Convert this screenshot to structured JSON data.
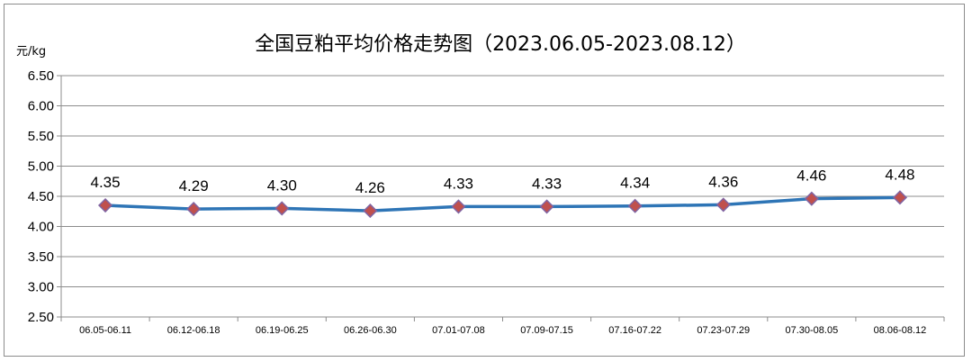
{
  "chart_data": {
    "type": "line",
    "title": "全国豆粕平均价格走势图（2023.06.05-2023.08.12）",
    "ylabel": "元/kg",
    "xlabel": "",
    "ylim": [
      2.5,
      6.5
    ],
    "ytick_labels": [
      "6.50",
      "6.00",
      "5.50",
      "5.00",
      "4.50",
      "4.00",
      "3.50",
      "3.00",
      "2.50"
    ],
    "grid": true,
    "legend": "none",
    "categories": [
      "06.05-06.11",
      "06.12-06.18",
      "06.19-06.25",
      "06.26-06.30",
      "07.01-07.08",
      "07.09-07.15",
      "07.16-07.22",
      "07.23-07.29",
      "07.30-08.05",
      "08.06-08.12"
    ],
    "series": [
      {
        "values": [
          4.35,
          4.29,
          4.3,
          4.26,
          4.33,
          4.33,
          4.34,
          4.36,
          4.46,
          4.48
        ],
        "labels": [
          "4.35",
          "4.29",
          "4.30",
          "4.26",
          "4.33",
          "4.33",
          "4.34",
          "4.36",
          "4.46",
          "4.48"
        ],
        "line_color": "#2e75b6",
        "marker_color": "#c0504d",
        "marker_edge_color": "#8064a2",
        "marker": "diamond"
      }
    ]
  }
}
